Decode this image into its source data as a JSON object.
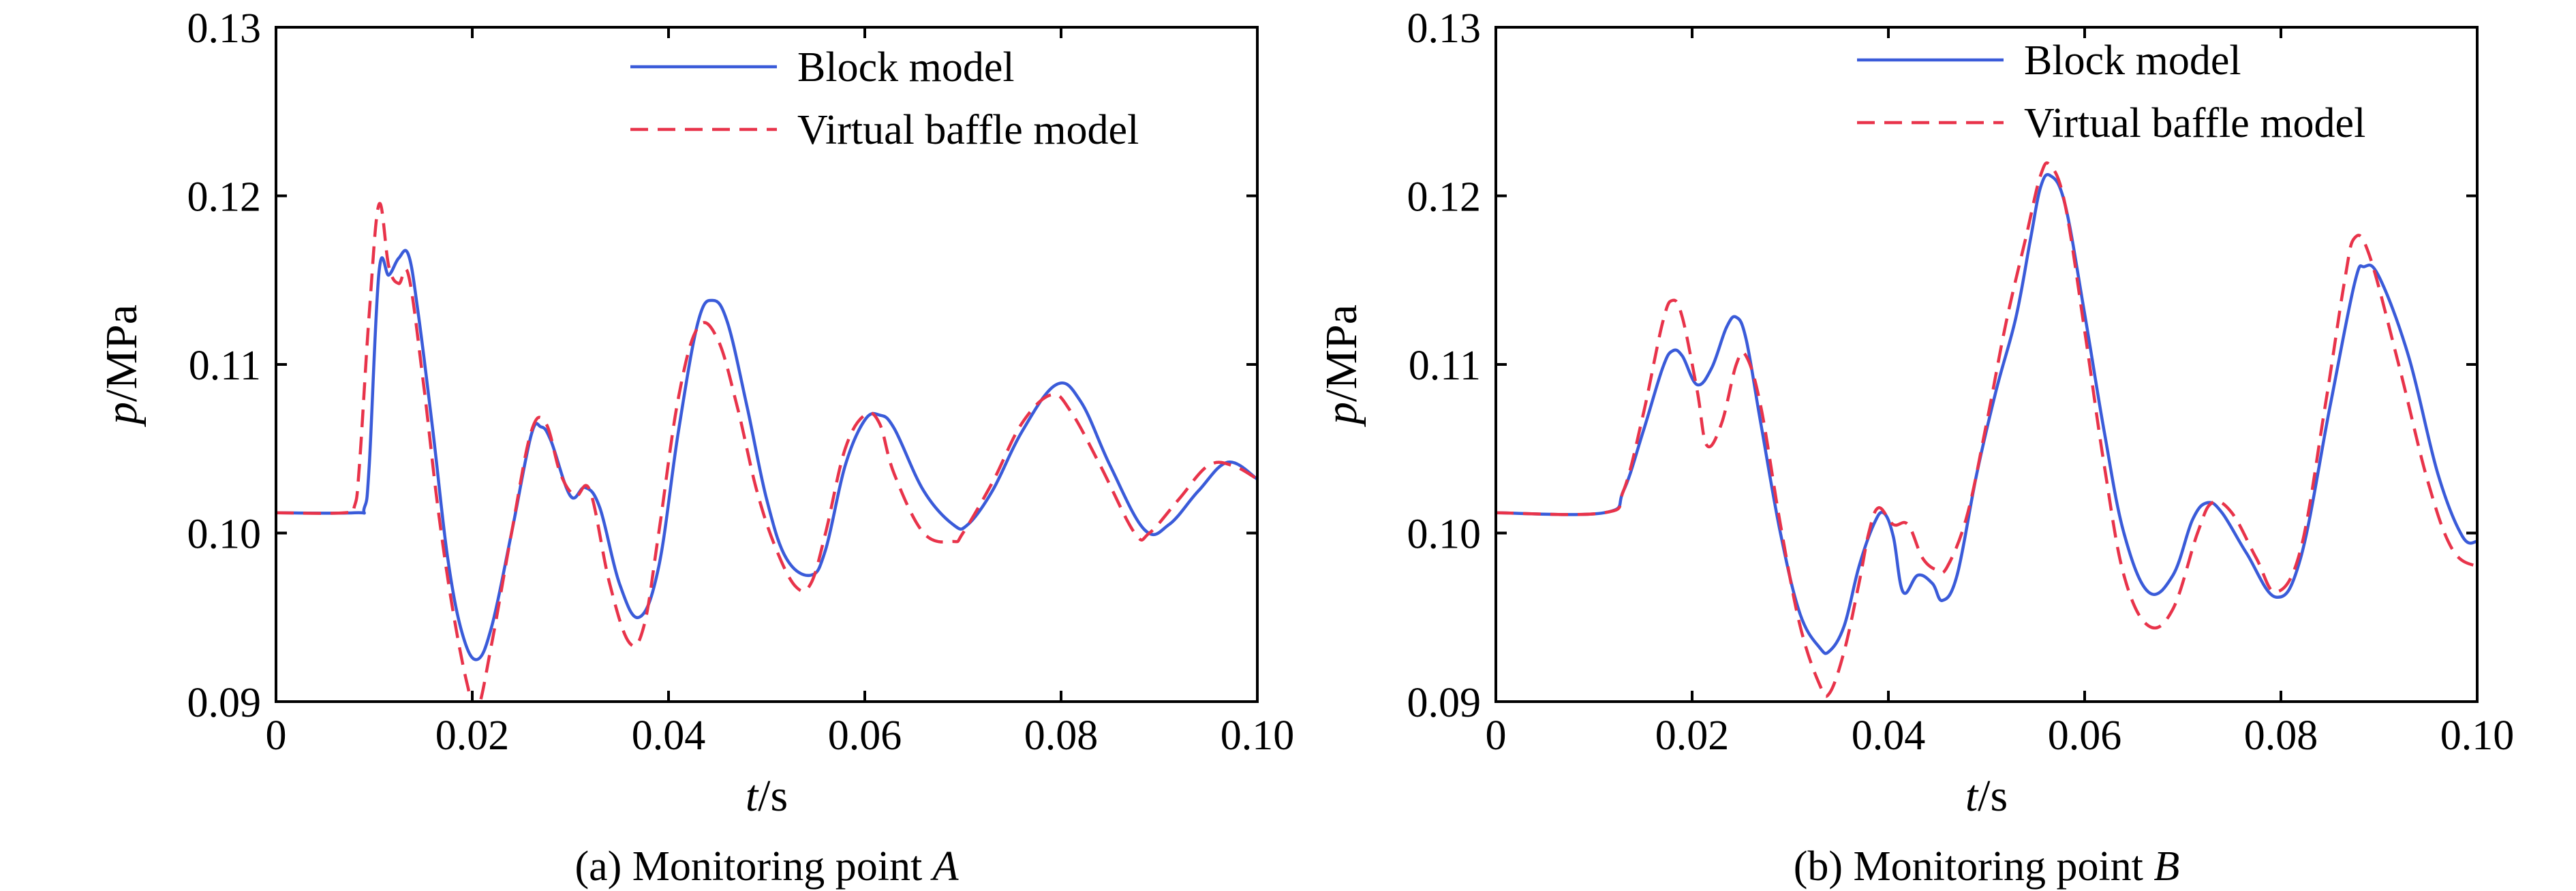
{
  "chart_data": [
    {
      "panel": "a",
      "type": "line",
      "caption_prefix": "(a) Monitoring point ",
      "caption_italic": "A",
      "xlabel_italic": "t",
      "xlabel_rest": "/s",
      "ylabel_italic": "p",
      "ylabel_rest": "/MPa",
      "xlim": [
        0,
        0.1
      ],
      "ylim": [
        0.09,
        0.13
      ],
      "xticks": [
        0,
        0.02,
        0.04,
        0.06,
        0.08,
        0.1
      ],
      "xtick_labels": [
        "0",
        "0.02",
        "0.04",
        "0.06",
        "0.08",
        "0.10"
      ],
      "yticks": [
        0.09,
        0.1,
        0.11,
        0.12,
        0.13
      ],
      "ytick_labels": [
        "0.09",
        "0.10",
        "0.11",
        "0.12",
        "0.13"
      ],
      "legend_position": "top-right",
      "series": [
        {
          "name": "Block model",
          "color": "#3a5bd9",
          "style": "solid",
          "x": [
            0,
            0.008,
            0.009,
            0.0095,
            0.0105,
            0.0115,
            0.0125,
            0.0135,
            0.0145,
            0.016,
            0.0175,
            0.019,
            0.0205,
            0.022,
            0.024,
            0.026,
            0.027,
            0.028,
            0.03,
            0.0315,
            0.033,
            0.035,
            0.037,
            0.039,
            0.041,
            0.043,
            0.0445,
            0.046,
            0.048,
            0.05,
            0.052,
            0.0545,
            0.056,
            0.058,
            0.06,
            0.0615,
            0.063,
            0.066,
            0.069,
            0.0705,
            0.073,
            0.076,
            0.0795,
            0.082,
            0.085,
            0.0885,
            0.091,
            0.094,
            0.097,
            0.1
          ],
          "y": [
            0.1012,
            0.1012,
            0.1015,
            0.104,
            0.1155,
            0.1153,
            0.1163,
            0.1165,
            0.113,
            0.106,
            0.0985,
            0.094,
            0.0925,
            0.0945,
            0.1,
            0.1058,
            0.1063,
            0.1055,
            0.1022,
            0.1027,
            0.1015,
            0.097,
            0.095,
            0.098,
            0.106,
            0.1125,
            0.1138,
            0.1125,
            0.1075,
            0.102,
            0.0985,
            0.0975,
            0.099,
            0.104,
            0.1067,
            0.107,
            0.1062,
            0.1025,
            0.1005,
            0.1005,
            0.1025,
            0.106,
            0.1088,
            0.1078,
            0.104,
            0.1002,
            0.1005,
            0.1025,
            0.1042,
            0.1032
          ]
        },
        {
          "name": "Virtual baffle model",
          "color": "#e8334a",
          "style": "dashed",
          "x": [
            0,
            0.007,
            0.008,
            0.0085,
            0.0095,
            0.0105,
            0.0115,
            0.0125,
            0.0135,
            0.015,
            0.0165,
            0.018,
            0.0195,
            0.0205,
            0.022,
            0.024,
            0.026,
            0.0275,
            0.029,
            0.0305,
            0.032,
            0.034,
            0.036,
            0.0375,
            0.039,
            0.041,
            0.043,
            0.045,
            0.047,
            0.049,
            0.051,
            0.053,
            0.0545,
            0.056,
            0.058,
            0.06,
            0.0615,
            0.063,
            0.066,
            0.069,
            0.07,
            0.073,
            0.076,
            0.079,
            0.081,
            0.084,
            0.0875,
            0.089,
            0.092,
            0.095,
            0.0975,
            0.1
          ],
          "y": [
            0.1012,
            0.1012,
            0.1016,
            0.104,
            0.113,
            0.1195,
            0.1158,
            0.1148,
            0.1153,
            0.109,
            0.1015,
            0.0955,
            0.091,
            0.0895,
            0.0935,
            0.1,
            0.106,
            0.1065,
            0.1035,
            0.1022,
            0.1025,
            0.097,
            0.0935,
            0.0945,
            0.1,
            0.108,
            0.1122,
            0.1115,
            0.1075,
            0.1025,
            0.099,
            0.0968,
            0.097,
            0.1,
            0.105,
            0.107,
            0.1065,
            0.1035,
            0.1,
            0.0995,
            0.1,
            0.103,
            0.1065,
            0.1082,
            0.1072,
            0.104,
            0.1,
            0.1,
            0.102,
            0.104,
            0.104,
            0.1032
          ]
        }
      ]
    },
    {
      "panel": "b",
      "type": "line",
      "caption_prefix": "(b) Monitoring point ",
      "caption_italic": "B",
      "xlabel_italic": "t",
      "xlabel_rest": "/s",
      "ylabel_italic": "p",
      "ylabel_rest": "/MPa",
      "xlim": [
        0,
        0.1
      ],
      "ylim": [
        0.09,
        0.13
      ],
      "xticks": [
        0,
        0.02,
        0.04,
        0.06,
        0.08,
        0.1
      ],
      "xtick_labels": [
        "0",
        "0.02",
        "0.04",
        "0.06",
        "0.08",
        "0.10"
      ],
      "yticks": [
        0.09,
        0.1,
        0.11,
        0.12,
        0.13
      ],
      "ytick_labels": [
        "0.09",
        "0.10",
        "0.11",
        "0.12",
        "0.13"
      ],
      "legend_position": "top-right",
      "series": [
        {
          "name": "Block model",
          "color": "#3a5bd9",
          "style": "solid",
          "x": [
            0,
            0.011,
            0.013,
            0.015,
            0.017,
            0.018,
            0.019,
            0.0205,
            0.022,
            0.0235,
            0.0245,
            0.0255,
            0.027,
            0.029,
            0.031,
            0.033,
            0.034,
            0.0355,
            0.037,
            0.0385,
            0.0395,
            0.0405,
            0.0415,
            0.043,
            0.0445,
            0.0455,
            0.047,
            0.049,
            0.051,
            0.053,
            0.0545,
            0.0555,
            0.0565,
            0.058,
            0.06,
            0.062,
            0.064,
            0.0665,
            0.069,
            0.071,
            0.0725,
            0.074,
            0.0765,
            0.0795,
            0.082,
            0.085,
            0.0875,
            0.0885,
            0.09,
            0.093,
            0.096,
            0.0985,
            0.1
          ],
          "y": [
            0.1012,
            0.1012,
            0.1025,
            0.106,
            0.1098,
            0.1108,
            0.1105,
            0.1088,
            0.1098,
            0.1122,
            0.1128,
            0.1115,
            0.1065,
            0.1,
            0.0952,
            0.0932,
            0.093,
            0.0945,
            0.098,
            0.1005,
            0.1012,
            0.0998,
            0.0965,
            0.0975,
            0.097,
            0.096,
            0.0975,
            0.1035,
            0.1085,
            0.1128,
            0.1175,
            0.1205,
            0.1212,
            0.1195,
            0.113,
            0.106,
            0.1,
            0.0965,
            0.0975,
            0.1008,
            0.1018,
            0.1012,
            0.0988,
            0.0962,
            0.0985,
            0.1075,
            0.1148,
            0.1158,
            0.1152,
            0.1105,
            0.1035,
            0.0998,
            0.0995
          ]
        },
        {
          "name": "Virtual baffle model",
          "color": "#e8334a",
          "style": "dashed",
          "x": [
            0,
            0.011,
            0.013,
            0.015,
            0.017,
            0.018,
            0.019,
            0.0205,
            0.0215,
            0.023,
            0.0245,
            0.0255,
            0.027,
            0.029,
            0.031,
            0.033,
            0.034,
            0.0355,
            0.037,
            0.038,
            0.039,
            0.0405,
            0.042,
            0.0435,
            0.045,
            0.046,
            0.048,
            0.05,
            0.052,
            0.054,
            0.0555,
            0.0565,
            0.058,
            0.06,
            0.062,
            0.064,
            0.0665,
            0.069,
            0.0715,
            0.073,
            0.075,
            0.0775,
            0.0795,
            0.082,
            0.0845,
            0.0865,
            0.0875,
            0.089,
            0.092,
            0.095,
            0.0975,
            0.1
          ],
          "y": [
            0.1012,
            0.1012,
            0.1025,
            0.107,
            0.1125,
            0.1138,
            0.1128,
            0.1085,
            0.1052,
            0.1065,
            0.11,
            0.1105,
            0.1075,
            0.1005,
            0.0945,
            0.091,
            0.0905,
            0.093,
            0.097,
            0.1,
            0.1015,
            0.1005,
            0.1005,
            0.0985,
            0.0978,
            0.098,
            0.101,
            0.1065,
            0.1125,
            0.1175,
            0.1212,
            0.1218,
            0.1195,
            0.112,
            0.104,
            0.0975,
            0.0945,
            0.0955,
            0.1,
            0.1018,
            0.1012,
            0.0985,
            0.0965,
            0.099,
            0.1075,
            0.115,
            0.1175,
            0.1165,
            0.11,
            0.103,
            0.099,
            0.098
          ]
        }
      ]
    }
  ]
}
